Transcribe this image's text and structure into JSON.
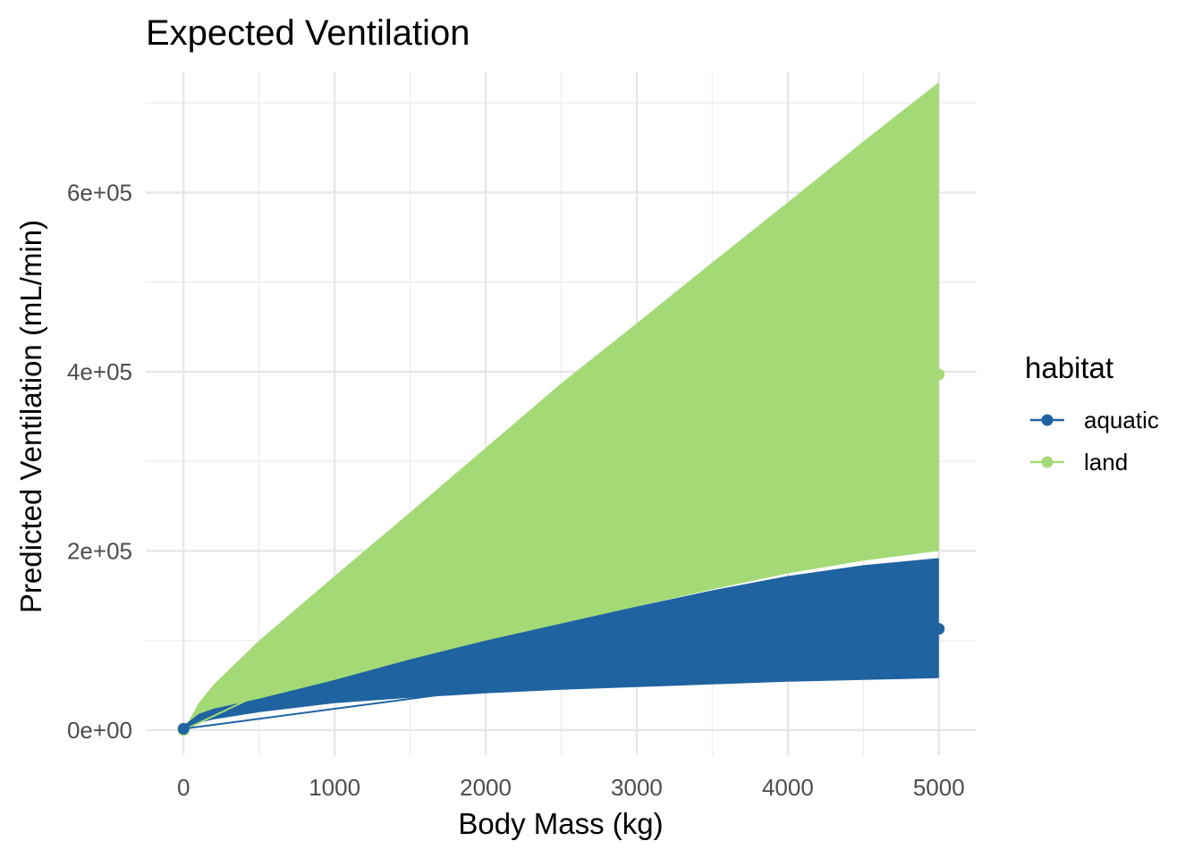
{
  "chart_data": {
    "type": "area",
    "title": "Expected Ventilation",
    "xlabel": "Body Mass (kg)",
    "ylabel": "Predicted Ventilation (mL/min)",
    "xlim": [
      -250,
      5250
    ],
    "ylim": [
      -28000,
      735000
    ],
    "x_ticks": [
      0,
      1000,
      2000,
      3000,
      4000,
      5000
    ],
    "x_tick_labels": [
      "0",
      "1000",
      "2000",
      "3000",
      "4000",
      "5000"
    ],
    "y_ticks": [
      0,
      200000,
      400000,
      600000
    ],
    "y_tick_labels": [
      "0e+00",
      "2e+05",
      "4e+05",
      "6e+05"
    ],
    "grid": true,
    "legend": {
      "title": "habitat",
      "position": "right",
      "entries": [
        {
          "label": "aquatic",
          "color": "#1f63a1"
        },
        {
          "label": "land",
          "color": "#a4da76"
        }
      ]
    },
    "series": [
      {
        "name": "land",
        "color": "#a4da76",
        "x": [
          0,
          100,
          200,
          500,
          1000,
          1500,
          2000,
          2500,
          3000,
          3500,
          4000,
          4500,
          5000
        ],
        "upper": [
          0,
          30000,
          51000,
          100000,
          172000,
          243000,
          315000,
          387000,
          454000,
          522000,
          589000,
          657000,
          723000
        ],
        "lower": [
          0,
          13000,
          19000,
          31000,
          52000,
          77000,
          98000,
          119000,
          138000,
          157000,
          175000,
          189000,
          200000
        ],
        "points": [
          {
            "x": 0,
            "y": 0
          },
          {
            "x": 5000,
            "y": 397000
          }
        ]
      },
      {
        "name": "aquatic",
        "color": "#1f63a1",
        "x": [
          0,
          100,
          200,
          500,
          1000,
          1500,
          2000,
          2500,
          3000,
          3500,
          4000,
          4500,
          5000
        ],
        "upper": [
          5000,
          18000,
          24000,
          35000,
          56000,
          79000,
          100000,
          119000,
          138000,
          156000,
          172000,
          184000,
          192000
        ],
        "lower": [
          0,
          8000,
          12000,
          20000,
          30000,
          36000,
          41000,
          45000,
          48000,
          51000,
          54000,
          56000,
          58000
        ],
        "points": [
          {
            "x": 0,
            "y": 1500
          },
          {
            "x": 5000,
            "y": 113000
          }
        ]
      }
    ]
  }
}
